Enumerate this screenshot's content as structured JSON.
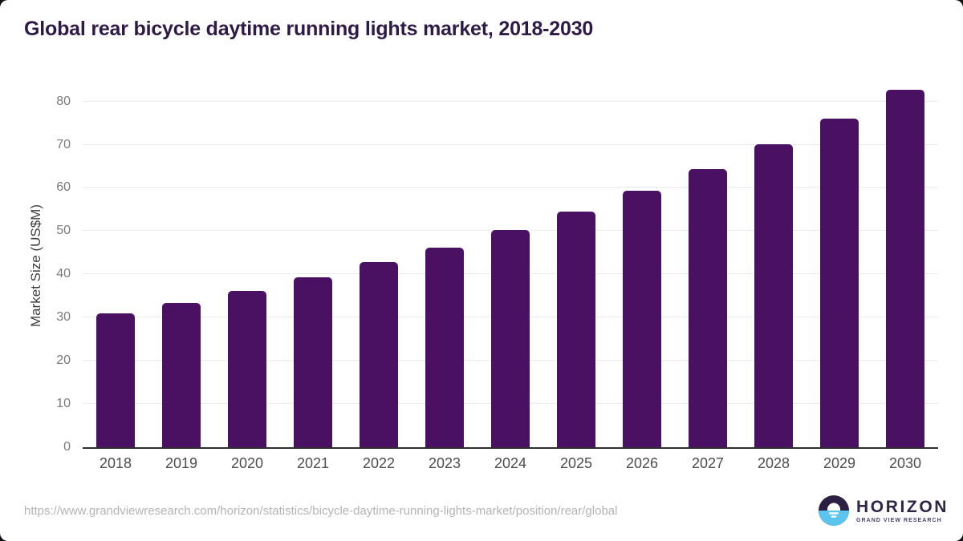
{
  "header": {
    "title": "Global rear bicycle daytime running lights market, 2018-2030"
  },
  "chart_data": {
    "type": "bar",
    "title": "Global rear bicycle daytime running lights market, 2018-2030",
    "categories": [
      "2018",
      "2019",
      "2020",
      "2021",
      "2022",
      "2023",
      "2024",
      "2025",
      "2026",
      "2027",
      "2028",
      "2029",
      "2030"
    ],
    "values": [
      30.9,
      33.4,
      36.1,
      39.4,
      42.8,
      46.2,
      50.2,
      54.5,
      59.4,
      64.3,
      70.1,
      76.1,
      82.7
    ],
    "xlabel": "",
    "ylabel": "Market Size (US$M)",
    "yticks": [
      0,
      10,
      20,
      30,
      40,
      50,
      60,
      70,
      80
    ],
    "ylim": [
      0,
      84
    ],
    "grid": true,
    "legend": null,
    "bar_color": "#4a1062"
  },
  "footer": {
    "source_url": "https://www.grandviewresearch.com/horizon/statistics/bicycle-daytime-running-lights-market/position/rear/global",
    "logo": {
      "name": "HORIZON",
      "subtitle": "GRAND VIEW RESEARCH"
    }
  },
  "colors": {
    "title_text": "#2e1a47",
    "bar": "#4a1062",
    "axis_line": "#2e2e2e",
    "gridline": "#ebebeb",
    "y_tick_text": "#7a7a7a",
    "x_tick_text": "#4d4d4d",
    "url_text": "#b4b4b4",
    "logo_purple": "#2d2043",
    "logo_blue": "#5cc5ef"
  }
}
